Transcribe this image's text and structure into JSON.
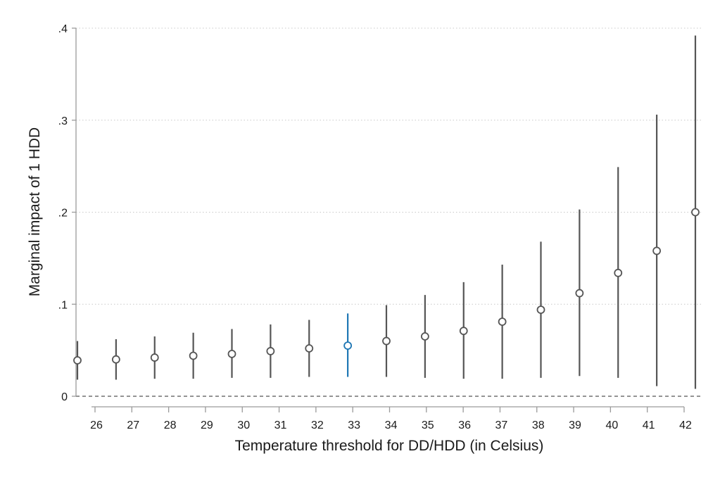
{
  "chart_data": {
    "type": "scatter",
    "subtype": "coefficient-plot-with-confidence-intervals",
    "xlabel": "Temperature threshold for DD/HDD (in Celsius)",
    "ylabel": "Marginal impact of 1 HDD",
    "ylim": [
      0,
      0.4
    ],
    "y_ticks": [
      {
        "value": 0,
        "label": "0"
      },
      {
        "value": 0.1,
        "label": ".1"
      },
      {
        "value": 0.2,
        "label": ".2"
      },
      {
        "value": 0.3,
        "label": ".3"
      },
      {
        "value": 0.4,
        "label": ".4"
      }
    ],
    "x_ticks": [
      "26",
      "27",
      "28",
      "29",
      "30",
      "31",
      "32",
      "33",
      "34",
      "35",
      "36",
      "37",
      "38",
      "39",
      "40",
      "41",
      "42"
    ],
    "reference_line": {
      "y": 0,
      "style": "dashed"
    },
    "grid": "horizontal dotted",
    "default_color": "#555555",
    "highlight_color": "#1f77b4",
    "points": [
      {
        "threshold": 26,
        "estimate": 0.039,
        "ci_low": 0.018,
        "ci_high": 0.06,
        "highlight": false
      },
      {
        "threshold": 27,
        "estimate": 0.04,
        "ci_low": 0.018,
        "ci_high": 0.062,
        "highlight": false
      },
      {
        "threshold": 28,
        "estimate": 0.042,
        "ci_low": 0.019,
        "ci_high": 0.065,
        "highlight": false
      },
      {
        "threshold": 29,
        "estimate": 0.044,
        "ci_low": 0.019,
        "ci_high": 0.069,
        "highlight": false
      },
      {
        "threshold": 30,
        "estimate": 0.046,
        "ci_low": 0.02,
        "ci_high": 0.073,
        "highlight": false
      },
      {
        "threshold": 31,
        "estimate": 0.049,
        "ci_low": 0.02,
        "ci_high": 0.078,
        "highlight": false
      },
      {
        "threshold": 32,
        "estimate": 0.052,
        "ci_low": 0.021,
        "ci_high": 0.083,
        "highlight": false
      },
      {
        "threshold": 33,
        "estimate": 0.055,
        "ci_low": 0.021,
        "ci_high": 0.09,
        "highlight": true
      },
      {
        "threshold": 34,
        "estimate": 0.06,
        "ci_low": 0.021,
        "ci_high": 0.099,
        "highlight": false
      },
      {
        "threshold": 35,
        "estimate": 0.065,
        "ci_low": 0.02,
        "ci_high": 0.11,
        "highlight": false
      },
      {
        "threshold": 36,
        "estimate": 0.071,
        "ci_low": 0.019,
        "ci_high": 0.124,
        "highlight": false
      },
      {
        "threshold": 37,
        "estimate": 0.081,
        "ci_low": 0.019,
        "ci_high": 0.143,
        "highlight": false
      },
      {
        "threshold": 38,
        "estimate": 0.094,
        "ci_low": 0.02,
        "ci_high": 0.168,
        "highlight": false
      },
      {
        "threshold": 39,
        "estimate": 0.112,
        "ci_low": 0.022,
        "ci_high": 0.203,
        "highlight": false
      },
      {
        "threshold": 40,
        "estimate": 0.134,
        "ci_low": 0.02,
        "ci_high": 0.249,
        "highlight": false
      },
      {
        "threshold": 41,
        "estimate": 0.158,
        "ci_low": 0.011,
        "ci_high": 0.306,
        "highlight": false
      },
      {
        "threshold": 42,
        "estimate": 0.2,
        "ci_low": 0.008,
        "ci_high": 0.392,
        "highlight": false
      }
    ]
  }
}
